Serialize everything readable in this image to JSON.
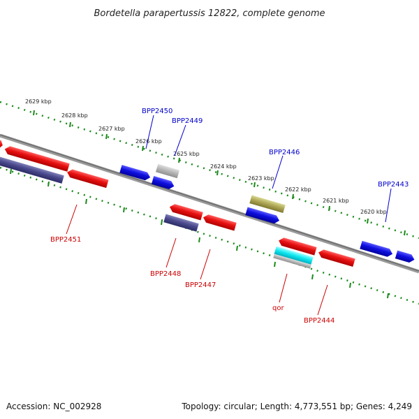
{
  "title": "Bordetella parapertussis 12822, complete genome",
  "footer": {
    "accession": "Accession: NC_002928",
    "topology": "Topology: circular; Length: 4,773,551 bp; Genes: 4,249"
  },
  "colors": {
    "backbone": "#8a8a8a",
    "ruler": "#1a8a1a",
    "label_top": "#0000cc",
    "label_bottom": "#cc0000"
  },
  "scale_labels": [
    "2629 kbp",
    "2628 kbp",
    "2627 kbp",
    "2626 kbp",
    "2625 kbp",
    "2624 kbp",
    "2623 kbp",
    "2622 kbp",
    "2621 kbp",
    "2620 kbp"
  ],
  "genes_top": [
    {
      "name": "BPP2450",
      "color": "#1a1ae6"
    },
    {
      "name": "BPP2449",
      "color": "#1a1ae6"
    },
    {
      "name": "BPP2446",
      "color": "#1a1ae6"
    },
    {
      "name": "BPP2443",
      "color": "#1a1ae6"
    }
  ],
  "genes_bottom": [
    {
      "name": "BPP2451",
      "color": "#e61a1a"
    },
    {
      "name": "BPP2448",
      "color": "#e61a1a"
    },
    {
      "name": "BPP2447",
      "color": "#e61a1a"
    },
    {
      "name": "qor",
      "color": "#e61a1a"
    },
    {
      "name": "BPP2444",
      "color": "#e61a1a"
    }
  ]
}
